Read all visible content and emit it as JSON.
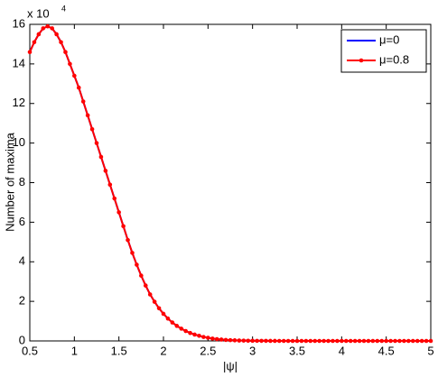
{
  "chart_data": {
    "type": "line",
    "x_label": "|ψ|",
    "y_label": "Number of maxima",
    "y_multiplier": "x 10",
    "y_multiplier_exponent": "4",
    "x": [
      0.5,
      0.55,
      0.6,
      0.65,
      0.7,
      0.75,
      0.8,
      0.85,
      0.9,
      0.95,
      1.0,
      1.05,
      1.1,
      1.15,
      1.2,
      1.25,
      1.3,
      1.35,
      1.4,
      1.45,
      1.5,
      1.55,
      1.6,
      1.65,
      1.7,
      1.75,
      1.8,
      1.85,
      1.9,
      1.95,
      2.0,
      2.05,
      2.1,
      2.15,
      2.2,
      2.25,
      2.3,
      2.35,
      2.4,
      2.45,
      2.5,
      2.55,
      2.6,
      2.65,
      2.7,
      2.75,
      2.8,
      2.85,
      2.9,
      2.95,
      3.0,
      3.05,
      3.1,
      3.15,
      3.2,
      3.25,
      3.3,
      3.35,
      3.4,
      3.45,
      3.5,
      3.55,
      3.6,
      3.65,
      3.7,
      3.75,
      3.8,
      3.85,
      3.9,
      3.95,
      4.0,
      4.05,
      4.1,
      4.15,
      4.2,
      4.25,
      4.3,
      4.35,
      4.4,
      4.45,
      4.5,
      4.55,
      4.6,
      4.65,
      4.7,
      4.75,
      4.8,
      4.85,
      4.9,
      4.95,
      5.0
    ],
    "series": [
      {
        "name": "μ=0",
        "color": "#0000ff",
        "marker": false,
        "values": [
          14.6,
          15.1,
          15.5,
          15.8,
          15.9,
          15.8,
          15.5,
          15.1,
          14.6,
          14.0,
          13.4,
          12.8,
          12.1,
          11.4,
          10.7,
          10.0,
          9.3,
          8.6,
          7.9,
          7.2,
          6.5,
          5.8,
          5.1,
          4.45,
          3.85,
          3.3,
          2.8,
          2.35,
          1.98,
          1.65,
          1.37,
          1.13,
          0.93,
          0.76,
          0.62,
          0.5,
          0.4,
          0.32,
          0.26,
          0.2,
          0.16,
          0.12,
          0.09,
          0.07,
          0.05,
          0.04,
          0.03,
          0.02,
          0.015,
          0.01,
          0.008,
          0.006,
          0.004,
          0.003,
          0.002,
          0.001,
          0,
          0,
          0,
          0,
          0,
          0,
          0,
          0,
          0,
          0,
          0,
          0,
          0,
          0,
          0,
          0,
          0,
          0,
          0,
          0,
          0,
          0,
          0,
          0,
          0,
          0,
          0,
          0,
          0,
          0,
          0,
          0,
          0,
          0,
          0
        ]
      },
      {
        "name": "μ=0.8",
        "color": "#ff0000",
        "marker": true,
        "values": [
          14.6,
          15.1,
          15.5,
          15.8,
          15.9,
          15.8,
          15.5,
          15.1,
          14.6,
          14.0,
          13.4,
          12.8,
          12.1,
          11.4,
          10.7,
          10.0,
          9.3,
          8.6,
          7.9,
          7.2,
          6.5,
          5.8,
          5.1,
          4.45,
          3.85,
          3.3,
          2.8,
          2.35,
          1.98,
          1.65,
          1.37,
          1.13,
          0.93,
          0.76,
          0.62,
          0.5,
          0.4,
          0.32,
          0.26,
          0.2,
          0.16,
          0.12,
          0.09,
          0.07,
          0.05,
          0.04,
          0.03,
          0.02,
          0.015,
          0.01,
          0.008,
          0.006,
          0.004,
          0.003,
          0.002,
          0.001,
          0,
          0,
          0,
          0,
          0,
          0,
          0,
          0,
          0,
          0,
          0,
          0,
          0,
          0,
          0,
          0,
          0,
          0,
          0,
          0,
          0,
          0,
          0,
          0,
          0,
          0,
          0,
          0,
          0,
          0,
          0,
          0,
          0,
          0,
          0
        ]
      }
    ],
    "xlim": [
      0.5,
      5
    ],
    "xticks": [
      0.5,
      1,
      1.5,
      2,
      2.5,
      3,
      3.5,
      4,
      4.5,
      5
    ],
    "ylim": [
      0,
      16
    ],
    "yticks": [
      0,
      2,
      4,
      6,
      8,
      10,
      12,
      14,
      16
    ],
    "grid": false,
    "legend": "top-right"
  }
}
